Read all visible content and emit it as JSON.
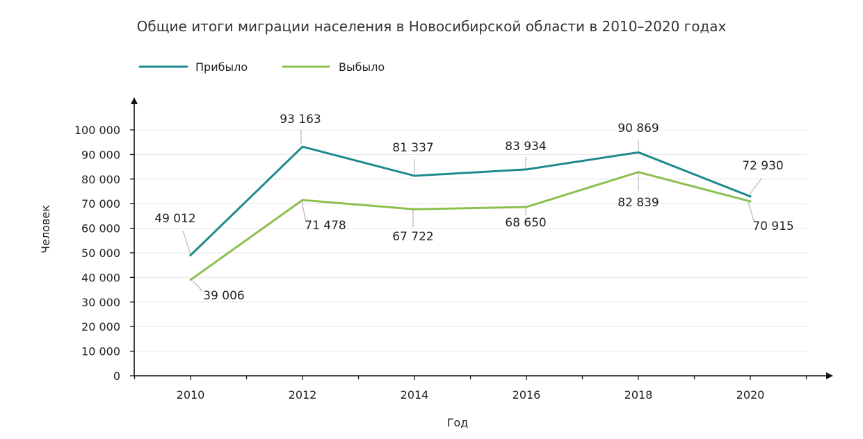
{
  "chart_data": {
    "type": "line",
    "title": "Общие итоги миграции населения в Новосибирской области в 2010–2020 годах",
    "xlabel": "Год",
    "ylabel": "Человек",
    "categories": [
      "2010",
      "2012",
      "2014",
      "2016",
      "2018",
      "2020"
    ],
    "ylim": [
      0,
      100000
    ],
    "yticks": [
      0,
      10000,
      20000,
      30000,
      40000,
      50000,
      60000,
      70000,
      80000,
      90000,
      100000
    ],
    "ytick_labels": [
      "0",
      "10 000",
      "20 000",
      "30 000",
      "40 000",
      "50 000",
      "60 000",
      "70 000",
      "80 000",
      "90 000",
      "100 000"
    ],
    "grid": true,
    "legend_position": "top-left",
    "series": [
      {
        "name": "Прибыло",
        "color": "#1f8a8e",
        "values": [
          49012,
          93163,
          81337,
          83934,
          90869,
          72930
        ],
        "labels": [
          "49 012",
          "93 163",
          "81 337",
          "83 934",
          "90 869",
          "72 930"
        ]
      },
      {
        "name": "Выбыло",
        "color": "#8dbf4f",
        "values": [
          39006,
          71478,
          67722,
          68650,
          82839,
          70915
        ],
        "labels": [
          "39 006",
          "71 478",
          "67 722",
          "68 650",
          "82 839",
          "70 915"
        ]
      }
    ]
  }
}
